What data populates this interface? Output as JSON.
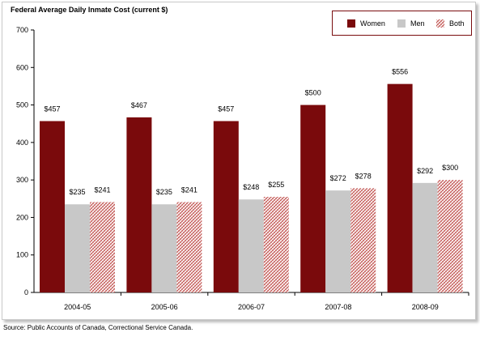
{
  "chart_data": {
    "type": "bar",
    "title": "Federal Average Daily Inmate Cost  (current $)",
    "categories": [
      "2004-05",
      "2005-06",
      "2006-07",
      "2007-08",
      "2008-09"
    ],
    "series": [
      {
        "name": "Women",
        "values": [
          457,
          467,
          457,
          500,
          556
        ],
        "labels": [
          "$457",
          "$467",
          "$457",
          "$500",
          "$556"
        ],
        "color": "#7a0a0c"
      },
      {
        "name": "Men",
        "values": [
          235,
          235,
          248,
          272,
          292
        ],
        "labels": [
          "$235",
          "$235",
          "$248",
          "$272",
          "$292"
        ],
        "color": "#c8c8c8"
      },
      {
        "name": "Both",
        "values": [
          241,
          241,
          255,
          278,
          300
        ],
        "labels": [
          "$241",
          "$241",
          "$255",
          "$278",
          "$300"
        ],
        "color": "#c0504d"
      }
    ],
    "yticks": [
      "0",
      "100",
      "200",
      "300",
      "400",
      "500",
      "600",
      "700"
    ],
    "ylim": [
      0,
      700
    ],
    "xlabel": "",
    "ylabel": "",
    "grid": false,
    "legend_position": "top-right"
  },
  "source": "Source: Public Accounts of Canada, Correctional Service Canada."
}
